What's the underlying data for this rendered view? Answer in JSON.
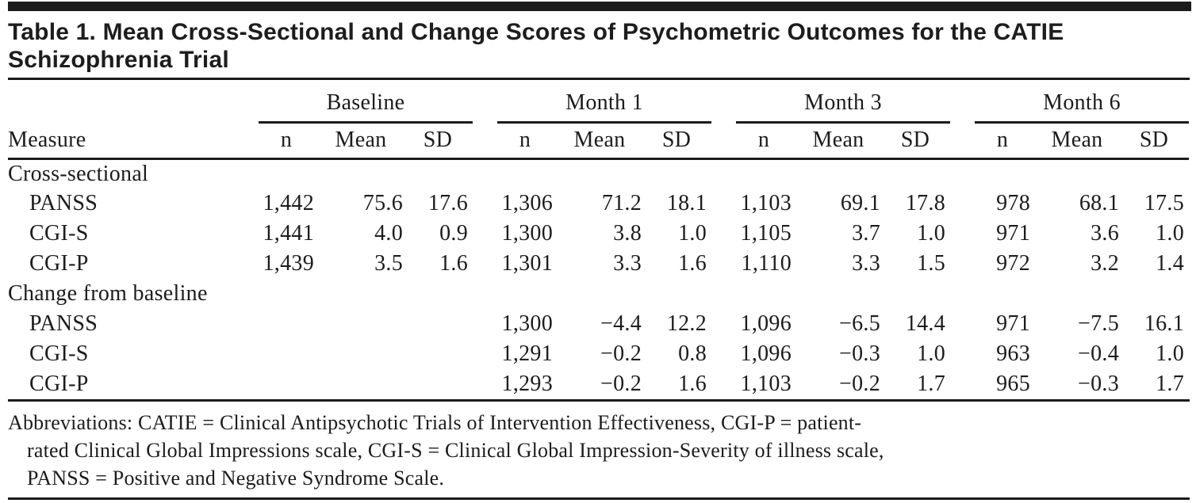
{
  "title": {
    "line1": "Table 1. Mean Cross-Sectional and Change Scores of Psychometric Outcomes for the CATIE",
    "line2": "Schizophrenia Trial"
  },
  "table": {
    "measure_header": "Measure",
    "groups": [
      {
        "label": "Baseline"
      },
      {
        "label": "Month 1"
      },
      {
        "label": "Month 3"
      },
      {
        "label": "Month 6"
      }
    ],
    "subheaders": {
      "n": "n",
      "mean": "Mean",
      "sd": "SD"
    },
    "rows": [
      {
        "type": "section",
        "label": "Cross-sectional"
      },
      {
        "type": "data",
        "label": "PANSS",
        "cells": [
          "1,442",
          "75.6",
          "17.6",
          "1,306",
          "71.2",
          "18.1",
          "1,103",
          "69.1",
          "17.8",
          "978",
          "68.1",
          "17.5"
        ]
      },
      {
        "type": "data",
        "label": "CGI-S",
        "cells": [
          "1,441",
          "4.0",
          "0.9",
          "1,300",
          "3.8",
          "1.0",
          "1,105",
          "3.7",
          "1.0",
          "971",
          "3.6",
          "1.0"
        ]
      },
      {
        "type": "data",
        "label": "CGI-P",
        "cells": [
          "1,439",
          "3.5",
          "1.6",
          "1,301",
          "3.3",
          "1.6",
          "1,110",
          "3.3",
          "1.5",
          "972",
          "3.2",
          "1.4"
        ]
      },
      {
        "type": "section",
        "label": "Change from baseline"
      },
      {
        "type": "data",
        "label": "PANSS",
        "cells": [
          "",
          "",
          "",
          "1,300",
          "−4.4",
          "12.2",
          "1,096",
          "−6.5",
          "14.4",
          "971",
          "−7.5",
          "16.1"
        ]
      },
      {
        "type": "data",
        "label": "CGI-S",
        "cells": [
          "",
          "",
          "",
          "1,291",
          "−0.2",
          "0.8",
          "1,096",
          "−0.3",
          "1.0",
          "963",
          "−0.4",
          "1.0"
        ]
      },
      {
        "type": "data",
        "label": "CGI-P",
        "cells": [
          "",
          "",
          "",
          "1,293",
          "−0.2",
          "1.6",
          "1,103",
          "−0.2",
          "1.7",
          "965",
          "−0.3",
          "1.7"
        ]
      }
    ]
  },
  "footnote": {
    "lines": [
      "Abbreviations: CATIE = Clinical Antipsychotic Trials of Intervention Effectiveness, CGI-P = patient-",
      "rated Clinical Global Impressions scale, CGI-S = Clinical Global Impression-Severity of illness scale,",
      "PANSS = Positive and Negative Syndrome Scale."
    ]
  },
  "colors": {
    "rule": "#1b1b1b",
    "text": "#1c1c1c"
  }
}
